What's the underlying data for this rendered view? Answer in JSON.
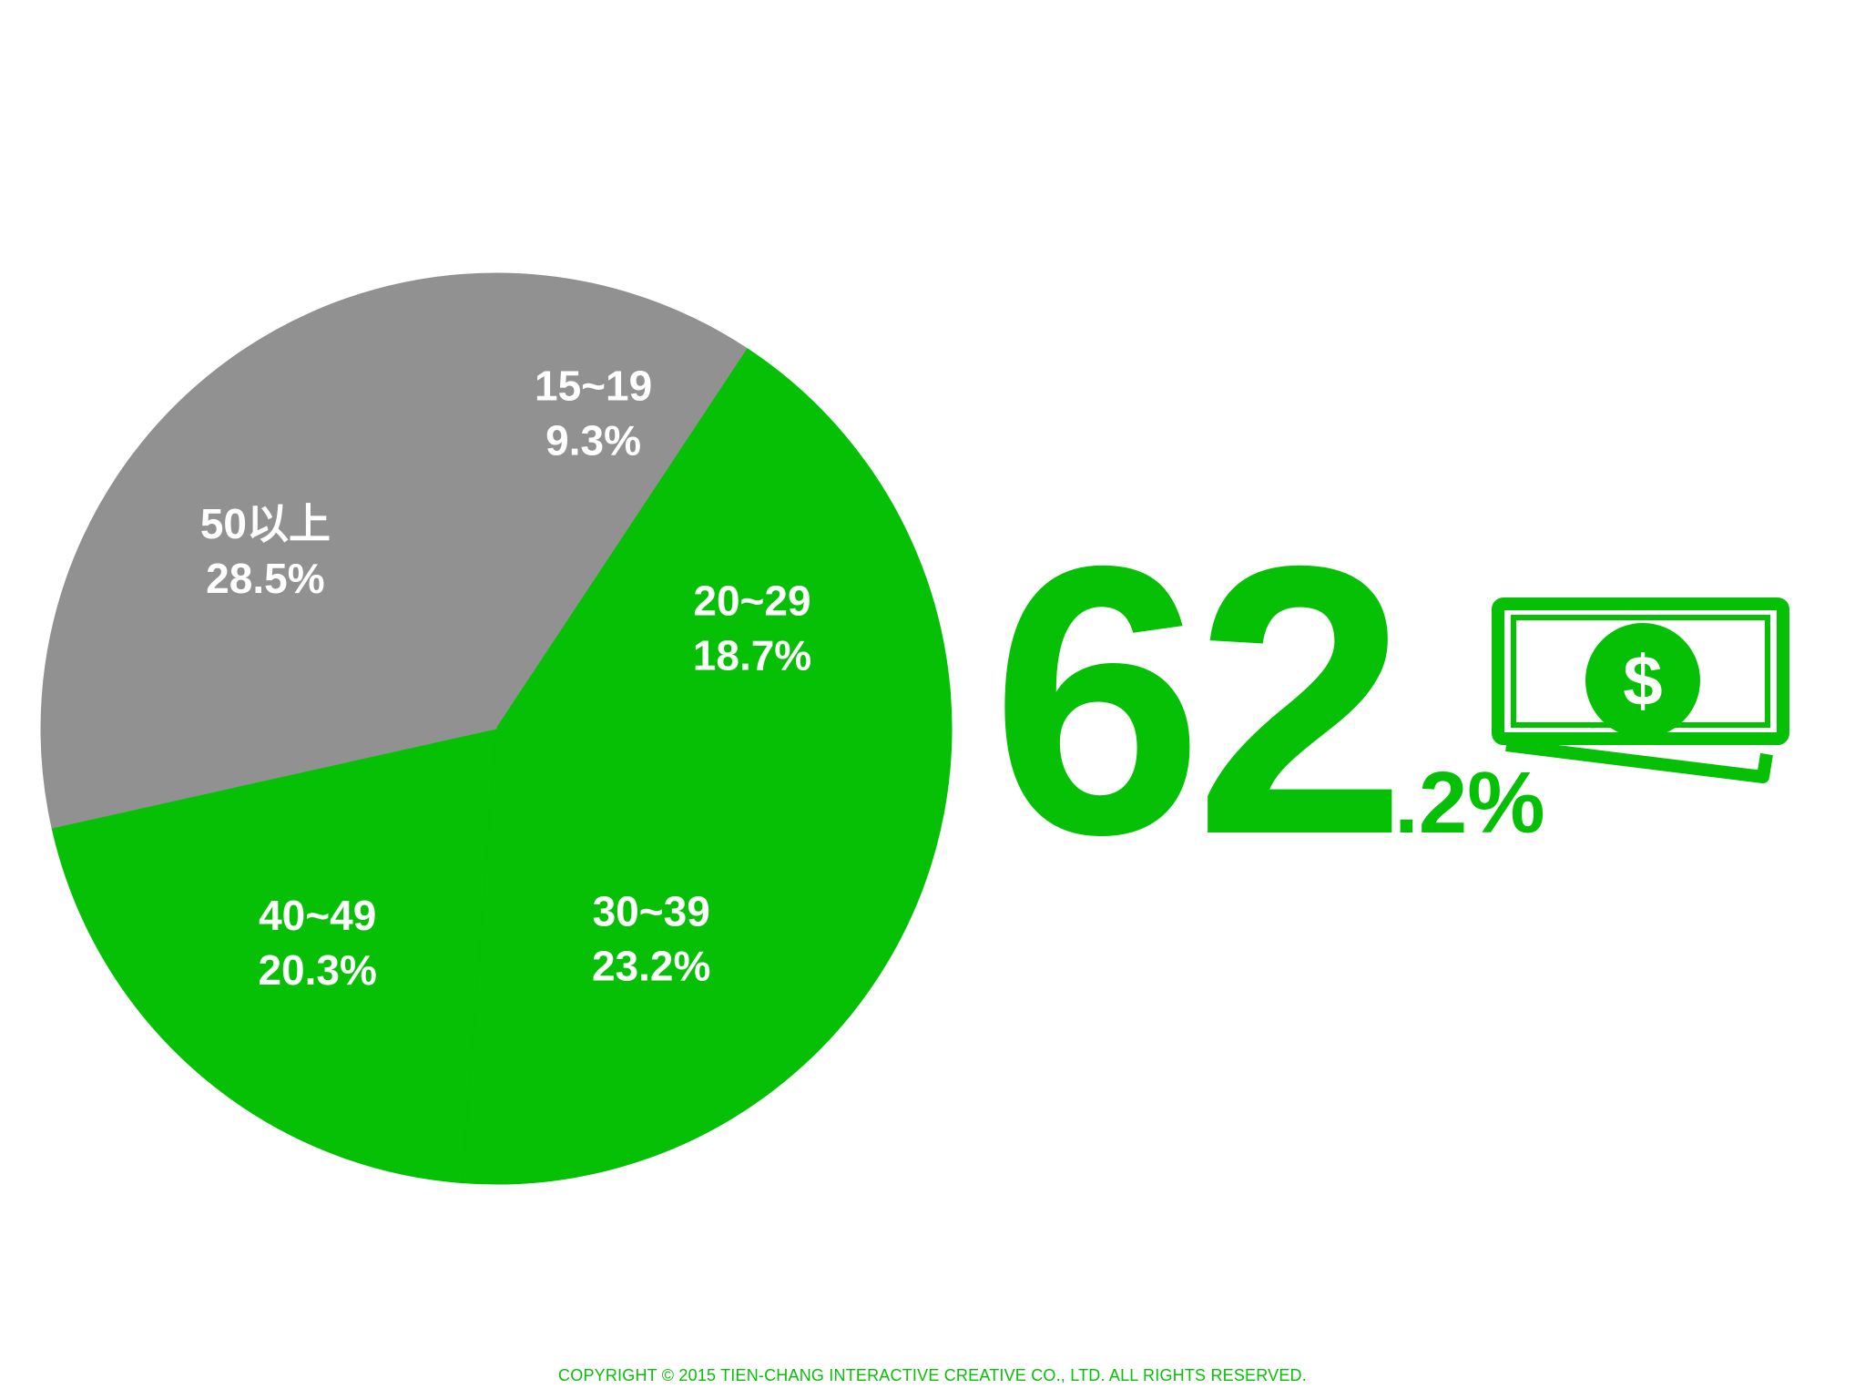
{
  "chart_data": {
    "type": "pie",
    "slices": [
      {
        "label": "15~19",
        "value": 9.3,
        "value_text": "9.3%",
        "color": "#919191"
      },
      {
        "label": "20~29",
        "value": 18.7,
        "value_text": "18.7%",
        "color": "#05c005"
      },
      {
        "label": "30~39",
        "value": 23.2,
        "value_text": "23.2%",
        "color": "#05c005"
      },
      {
        "label": "40~49",
        "value": 20.3,
        "value_text": "20.3%",
        "color": "#05c005"
      },
      {
        "label": "50以上",
        "value": 28.5,
        "value_text": "28.5%",
        "color": "#919191"
      }
    ],
    "start_angle_deg_clockwise_from_top": 0
  },
  "highlight": {
    "value_int": "62",
    "value_frac": ".2%",
    "icon": "money-bill-dollar-icon",
    "color": "#05c005"
  },
  "footer": {
    "copyright": "COPYRIGHT © 2015 TIEN-CHANG INTERACTIVE CREATIVE CO., LTD. ALL RIGHTS RESERVED."
  },
  "colors": {
    "accent_green": "#05c005",
    "gray": "#919191",
    "background": "#ffffff"
  }
}
